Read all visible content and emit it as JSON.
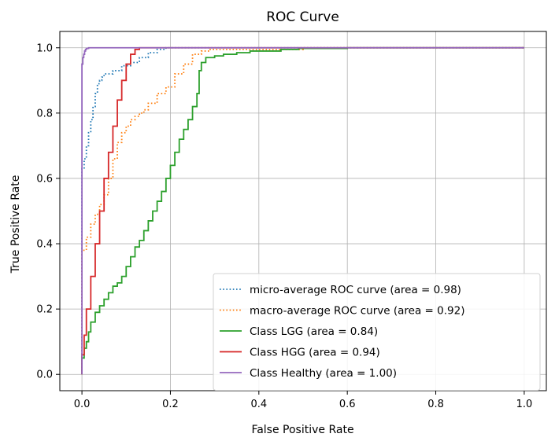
{
  "chart_data": {
    "type": "line",
    "title": "ROC Curve",
    "xlabel": "False Positive Rate",
    "ylabel": "True Positive Rate",
    "xlim": [
      -0.05,
      1.05
    ],
    "ylim": [
      -0.05,
      1.05
    ],
    "xticks": [
      0.0,
      0.2,
      0.4,
      0.6,
      0.8,
      1.0
    ],
    "yticks": [
      0.0,
      0.2,
      0.4,
      0.6,
      0.8,
      1.0
    ],
    "xtick_labels": [
      "0.0",
      "0.2",
      "0.4",
      "0.6",
      "0.8",
      "1.0"
    ],
    "ytick_labels": [
      "0.0",
      "0.2",
      "0.4",
      "0.6",
      "0.8",
      "1.0"
    ],
    "grid": true,
    "legend_position": "lower-right",
    "series": [
      {
        "name": "micro-average ROC curve (area = 0.98)",
        "color": "#1f77b4",
        "style": "dotted",
        "step": true,
        "x": [
          0.0,
          0.0,
          0.005,
          0.01,
          0.015,
          0.02,
          0.025,
          0.03,
          0.035,
          0.04,
          0.045,
          0.05,
          0.07,
          0.09,
          0.11,
          0.13,
          0.15,
          0.17,
          0.19,
          0.21,
          0.25,
          0.3,
          0.4,
          0.6,
          0.8,
          1.0
        ],
        "y": [
          0.0,
          0.6,
          0.63,
          0.66,
          0.7,
          0.74,
          0.78,
          0.82,
          0.86,
          0.89,
          0.9,
          0.91,
          0.92,
          0.93,
          0.945,
          0.955,
          0.97,
          0.985,
          0.995,
          1.0,
          1.0,
          1.0,
          1.0,
          1.0,
          1.0,
          1.0
        ]
      },
      {
        "name": "macro-average ROC curve (area = 0.92)",
        "color": "#ff7f0e",
        "style": "dotted",
        "step": true,
        "x": [
          0.0,
          0.0,
          0.01,
          0.02,
          0.03,
          0.04,
          0.05,
          0.06,
          0.07,
          0.08,
          0.09,
          0.1,
          0.11,
          0.12,
          0.13,
          0.14,
          0.15,
          0.17,
          0.19,
          0.21,
          0.23,
          0.25,
          0.27,
          0.29,
          0.31,
          0.33,
          0.35,
          0.4,
          0.5,
          0.77,
          1.0
        ],
        "y": [
          0.0,
          0.33,
          0.38,
          0.42,
          0.46,
          0.49,
          0.52,
          0.55,
          0.6,
          0.66,
          0.71,
          0.74,
          0.76,
          0.78,
          0.79,
          0.8,
          0.81,
          0.83,
          0.86,
          0.88,
          0.92,
          0.95,
          0.98,
          0.99,
          0.995,
          0.995,
          0.995,
          0.995,
          0.995,
          1.0,
          1.0
        ]
      },
      {
        "name": "Class LGG (area = 0.84)",
        "color": "#2ca02c",
        "style": "solid",
        "step": true,
        "x": [
          0.0,
          0.0,
          0.005,
          0.01,
          0.015,
          0.02,
          0.03,
          0.04,
          0.05,
          0.06,
          0.07,
          0.08,
          0.09,
          0.1,
          0.11,
          0.12,
          0.13,
          0.14,
          0.15,
          0.16,
          0.17,
          0.18,
          0.19,
          0.2,
          0.21,
          0.22,
          0.23,
          0.24,
          0.25,
          0.26,
          0.265,
          0.27,
          0.28,
          0.3,
          0.32,
          0.35,
          0.38,
          0.42,
          0.45,
          0.49,
          0.6,
          0.77,
          1.0
        ],
        "y": [
          0.0,
          0.03,
          0.05,
          0.08,
          0.1,
          0.13,
          0.16,
          0.19,
          0.21,
          0.23,
          0.25,
          0.27,
          0.28,
          0.3,
          0.33,
          0.36,
          0.39,
          0.41,
          0.44,
          0.47,
          0.5,
          0.53,
          0.56,
          0.6,
          0.64,
          0.68,
          0.72,
          0.75,
          0.78,
          0.82,
          0.86,
          0.93,
          0.955,
          0.97,
          0.975,
          0.98,
          0.985,
          0.99,
          0.99,
          0.995,
          0.998,
          1.0,
          1.0
        ]
      },
      {
        "name": "Class HGG (area = 0.94)",
        "color": "#d62728",
        "style": "solid",
        "step": true,
        "x": [
          0.0,
          0.0,
          0.005,
          0.01,
          0.02,
          0.03,
          0.04,
          0.05,
          0.06,
          0.07,
          0.08,
          0.09,
          0.1,
          0.11,
          0.12,
          0.13,
          0.14,
          0.2,
          0.4,
          0.7,
          1.0
        ],
        "y": [
          0.0,
          0.02,
          0.06,
          0.12,
          0.2,
          0.3,
          0.4,
          0.5,
          0.6,
          0.68,
          0.76,
          0.84,
          0.9,
          0.95,
          0.98,
          0.995,
          1.0,
          1.0,
          1.0,
          1.0,
          1.0
        ]
      },
      {
        "name": "Class Healthy (area = 1.00)",
        "color": "#9467bd",
        "style": "solid",
        "step": true,
        "x": [
          0.0,
          0.0,
          0.002,
          0.004,
          0.006,
          0.008,
          0.01,
          0.015,
          0.02,
          0.03,
          0.2,
          0.5,
          1.0
        ],
        "y": [
          0.0,
          0.92,
          0.95,
          0.97,
          0.98,
          0.99,
          0.995,
          0.998,
          1.0,
          1.0,
          1.0,
          1.0,
          1.0
        ]
      }
    ]
  }
}
